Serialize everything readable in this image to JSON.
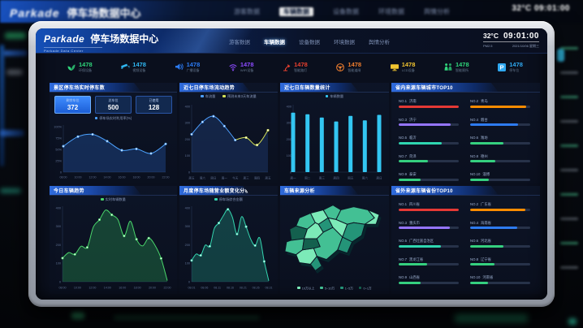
{
  "background": {
    "brand": "Parkade",
    "title": "停车场数据中心",
    "temp": "32°C",
    "time": "09:01:00"
  },
  "header": {
    "brand": "Parkade",
    "title": "停车场数据中心",
    "subtitle": "Parkade Data Center",
    "nav": [
      {
        "label": "游客数据",
        "active": false
      },
      {
        "label": "车辆数据",
        "active": true
      },
      {
        "label": "设备数据",
        "active": false
      },
      {
        "label": "环境数据",
        "active": false
      },
      {
        "label": "舆情分析",
        "active": false
      }
    ],
    "temp": "32°C",
    "time": "09:01:00",
    "pm_label": "PM2.5",
    "date": "2021/10/06 星期三"
  },
  "stats": [
    {
      "icon": "plant-icon",
      "value": "1478",
      "label": "环保设备",
      "color": "#2fd57b"
    },
    {
      "icon": "camera-icon",
      "value": "1478",
      "label": "视频设备",
      "color": "#2fb6f0"
    },
    {
      "icon": "speaker-icon",
      "value": "1478",
      "label": "广播设备",
      "color": "#2b7bf3"
    },
    {
      "icon": "wifi-icon",
      "value": "1478",
      "label": "WIFI设备",
      "color": "#8c4bff"
    },
    {
      "icon": "lamp-icon",
      "value": "1478",
      "label": "智能路灯",
      "color": "#e8402f"
    },
    {
      "icon": "steering-icon",
      "value": "1478",
      "label": "智能道闸",
      "color": "#f07e2e"
    },
    {
      "icon": "screen-icon",
      "value": "1478",
      "label": "LCD设备",
      "color": "#f2c530"
    },
    {
      "icon": "people-icon",
      "value": "1478",
      "label": "智能厕所",
      "color": "#2fd57b"
    },
    {
      "icon": "parking-icon",
      "value": "1478",
      "label": "停车位",
      "color": "#2fa8f0"
    }
  ],
  "panels": {
    "realtime": {
      "title": "景区停车场实时停车数",
      "boxes": [
        {
          "label": "剩余车位",
          "value": "372",
          "highlight": true
        },
        {
          "label": "总车位",
          "value": "500",
          "highlight": false
        },
        {
          "label": "已使用",
          "value": "128",
          "highlight": false
        }
      ],
      "chart": {
        "type": "line",
        "legend": "停车场实时利用率(%)",
        "color": "#4da3ff",
        "x": [
          "08:00",
          "10:00",
          "12:00",
          "14:00",
          "16:00",
          "18:00",
          "20:00",
          "22:00"
        ],
        "values": [
          57,
          78,
          83,
          68,
          48,
          51,
          41,
          62
        ],
        "ymax": 100,
        "yticks": [
          "0",
          "25%",
          "50%",
          "75%",
          "100%"
        ]
      }
    },
    "weekly_flow": {
      "title": "近七日停车场流动趋势",
      "chart": {
        "type": "line",
        "x": [
          "周五",
          "周六",
          "周日",
          "周一",
          "今天",
          "周三",
          "周四",
          "周五"
        ],
        "values": [
          230,
          305,
          340,
          280,
          195,
          210,
          165,
          255
        ],
        "ymax": 400,
        "yticks": [
          "0",
          "100",
          "200",
          "300",
          "400"
        ],
        "series": [
          {
            "name": "车流量",
            "color": "#4d9fff",
            "from": 0,
            "to": 4
          },
          {
            "name": "预测未来3天车流量",
            "color": "#d4e157",
            "from": 4,
            "to": 7
          }
        ]
      }
    },
    "weekly_count": {
      "title": "近七日车辆数量统计",
      "chart": {
        "type": "bar",
        "legend": "车辆数量",
        "color": "#33c6f2",
        "x": [
          "周一",
          "周二",
          "周三",
          "周四",
          "周五",
          "周六",
          "周日"
        ],
        "values": [
          362,
          352,
          332,
          308,
          342,
          315,
          348
        ],
        "ymax": 400,
        "yticks": [
          "0",
          "100",
          "200",
          "300",
          "400"
        ]
      }
    },
    "city_top10": {
      "title": "省内来源车辆城市TOP10",
      "items": [
        {
          "rank": "NO.1",
          "name": "济南",
          "pct": 100,
          "color": "#e53935"
        },
        {
          "rank": "NO.2",
          "name": "青岛",
          "pct": 93,
          "color": "#fb8c00"
        },
        {
          "rank": "NO.3",
          "name": "济宁",
          "pct": 86,
          "color": "#9575ff"
        },
        {
          "rank": "NO.4",
          "name": "烟台",
          "pct": 80,
          "color": "#2e7bf0"
        },
        {
          "rank": "NO.5",
          "name": "临沂",
          "pct": 72,
          "color": "#2fd6b0"
        },
        {
          "rank": "NO.6",
          "name": "潍坊",
          "pct": 56,
          "color": "#35d07f"
        },
        {
          "rank": "NO.7",
          "name": "菏泽",
          "pct": 48,
          "color": "#35d07f"
        },
        {
          "rank": "NO.8",
          "name": "德州",
          "pct": 42,
          "color": "#35d07f"
        },
        {
          "rank": "NO.9",
          "name": "泰安",
          "pct": 37,
          "color": "#35d07f"
        },
        {
          "rank": "NO.10",
          "name": "淄博",
          "pct": 31,
          "color": "#35d07f"
        }
      ]
    },
    "today_trend": {
      "title": "今日车辆趋势",
      "chart": {
        "type": "area",
        "legend": "实时车辆数量",
        "color": "#4ad56b",
        "x": [
          "08:00",
          "10:00",
          "12:00",
          "14:00",
          "16:00",
          "18:00",
          "20:00",
          "22:00"
        ],
        "values": [
          128,
          158,
          148,
          192,
          186,
          296,
          336,
          388,
          362,
          336,
          248,
          328,
          230,
          194,
          236,
          198,
          126,
          6
        ],
        "ymax": 400,
        "yticks": [
          "0",
          "100",
          "200",
          "300",
          "400"
        ]
      }
    },
    "monthly_revenue": {
      "title": "月度停车场随营业额变化分析",
      "chart": {
        "type": "area",
        "legend": "停车场综合金额",
        "color": "#35d6b0",
        "x": [
          "08.01",
          "08.06",
          "08.11",
          "08.16",
          "08.21",
          "08.26",
          "08.31"
        ],
        "values": [
          115,
          150,
          143,
          198,
          192,
          288,
          318,
          358,
          392,
          348,
          258,
          352,
          298,
          232,
          196,
          238,
          110,
          5
        ],
        "ymax": 400,
        "yticks": [
          "0",
          "100",
          "200",
          "300",
          "400"
        ]
      }
    },
    "source_map": {
      "title": "车辆来源分析",
      "legend": [
        {
          "label": "10万以上",
          "color": "#7ceab8"
        },
        {
          "label": "5~10万",
          "color": "#43c094"
        },
        {
          "label": "1~5万",
          "color": "#249478"
        },
        {
          "label": "0~1万",
          "color": "#14604e"
        }
      ]
    },
    "province_top10": {
      "title": "省外来源车辆省份TOP10",
      "items": [
        {
          "rank": "NO.1",
          "name": "四川省",
          "pct": 100,
          "color": "#e53935"
        },
        {
          "rank": "NO.2",
          "name": "广东省",
          "pct": 92,
          "color": "#fb8c00"
        },
        {
          "rank": "NO.3",
          "name": "重庆市",
          "pct": 85,
          "color": "#9575ff"
        },
        {
          "rank": "NO.4",
          "name": "海南省",
          "pct": 78,
          "color": "#2e7bf0"
        },
        {
          "rank": "NO.5",
          "name": "广西壮族自治区",
          "pct": 70,
          "color": "#2fd6b0"
        },
        {
          "rank": "NO.6",
          "name": "河北省",
          "pct": 55,
          "color": "#35d07f"
        },
        {
          "rank": "NO.7",
          "name": "黑龙江省",
          "pct": 47,
          "color": "#35d07f"
        },
        {
          "rank": "NO.8",
          "name": "辽宁省",
          "pct": 41,
          "color": "#35d07f"
        },
        {
          "rank": "NO.9",
          "name": "山西省",
          "pct": 36,
          "color": "#35d07f"
        },
        {
          "rank": "NO.10",
          "name": "河南省",
          "pct": 30,
          "color": "#35d07f"
        }
      ]
    }
  }
}
